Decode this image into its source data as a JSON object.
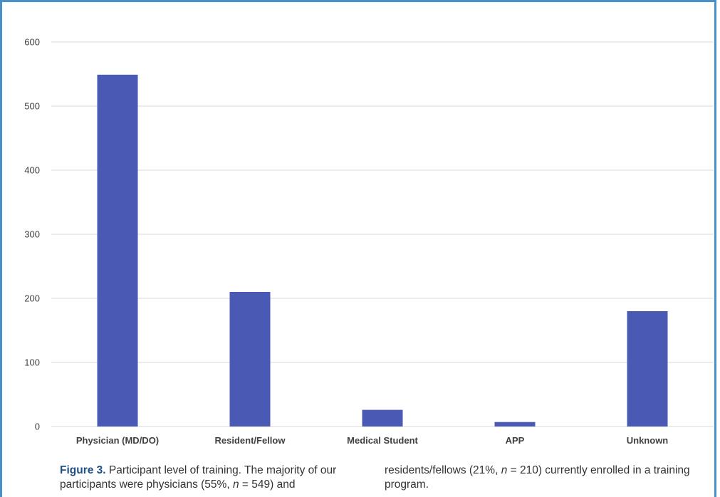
{
  "chart_data": {
    "type": "bar",
    "categories": [
      "Physician (MD/DO)",
      "Resident/Fellow",
      "Medical Student",
      "APP",
      "Unknown"
    ],
    "values": [
      549,
      210,
      26,
      7,
      180
    ],
    "ylim": [
      0,
      600
    ],
    "yticks": [
      0,
      100,
      200,
      300,
      400,
      500,
      600
    ],
    "grid": true,
    "bar_color": "#4a5ab4",
    "grid_color": "#d9d9d9"
  },
  "caption": {
    "label": "Figure 3.",
    "text_a": "Participant level of training. The majority of our participants were physicians (55%,",
    "n_symbol": "n",
    "text_b": "= 549) and",
    "text_c": "residents/fellows (21%,",
    "text_d": "= 210) currently enrolled in a training program."
  },
  "frame_color": "#4a90c8"
}
